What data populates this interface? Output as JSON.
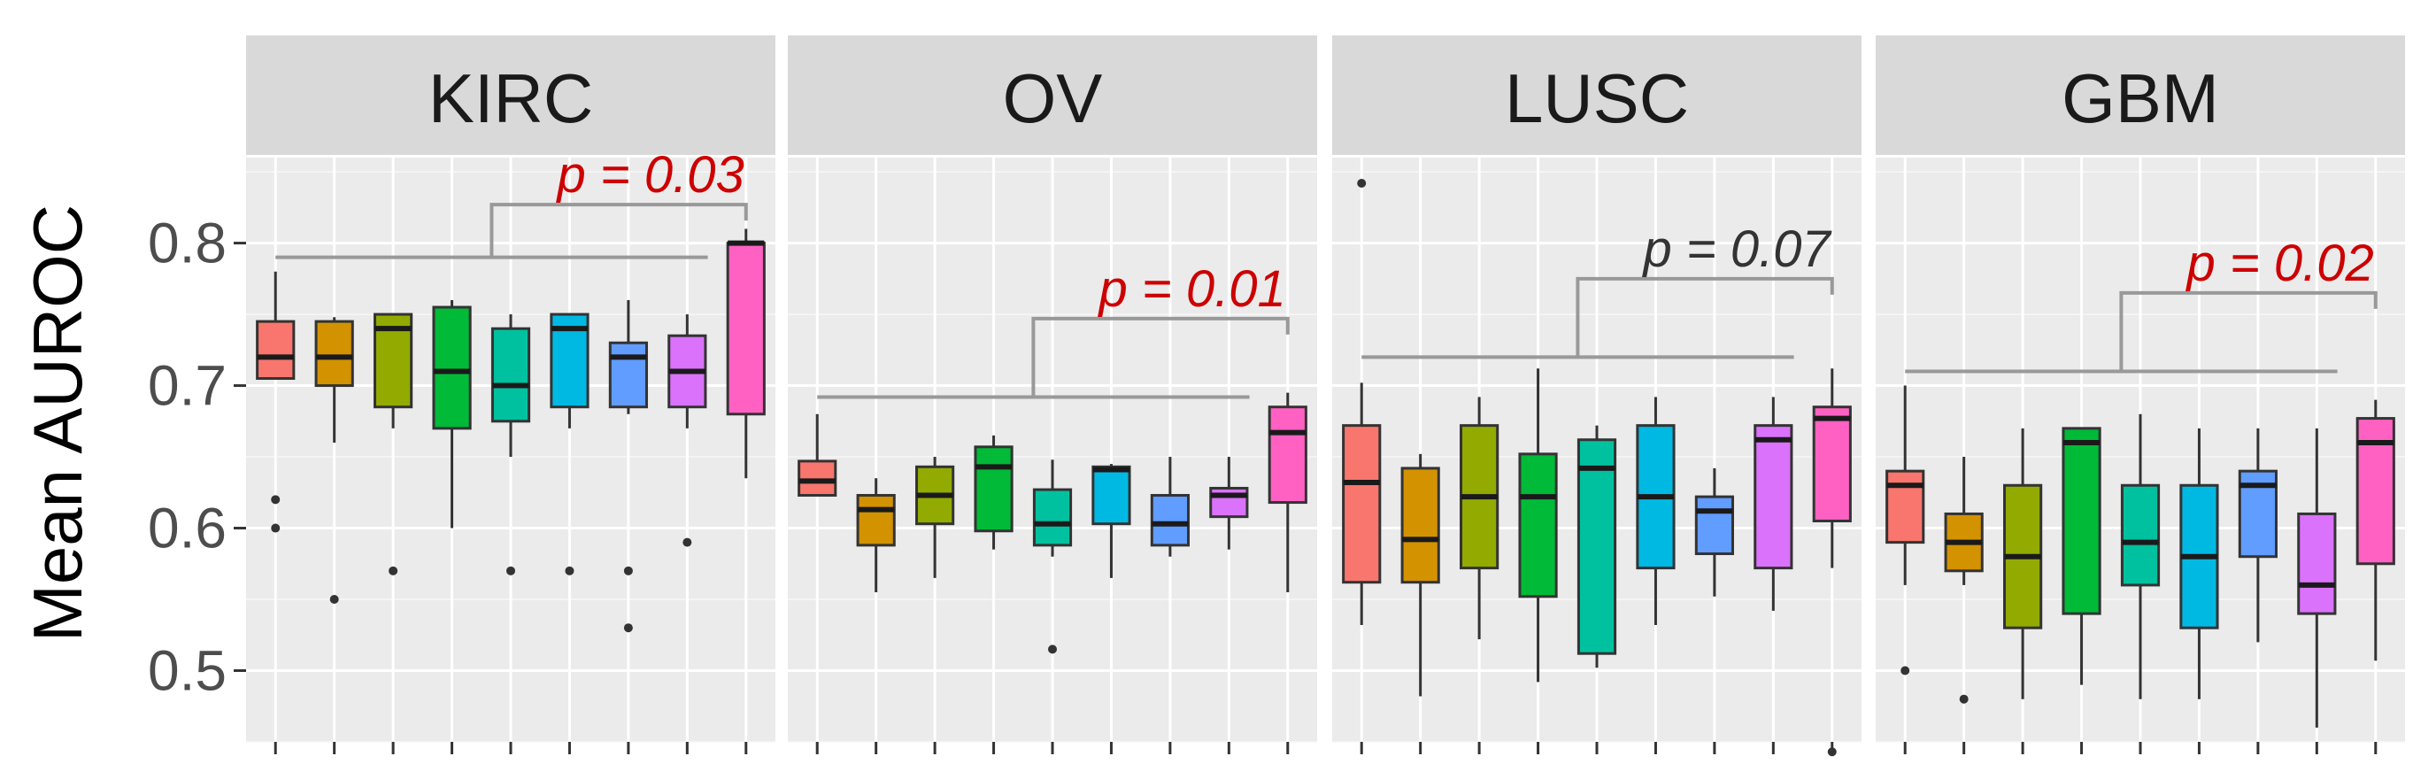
{
  "chart_data": {
    "type": "boxplot",
    "ylabel": "Mean AUROC",
    "ylim": [
      0.45,
      0.86
    ],
    "yticks": [
      0.5,
      0.6,
      0.7,
      0.8
    ],
    "ytick_labels": [
      "0.5",
      "0.6",
      "0.7",
      "0.8"
    ],
    "grid": true,
    "legend": "none",
    "series_colors": [
      "#F8766D",
      "#D39200",
      "#93AA00",
      "#00BA38",
      "#00C19F",
      "#00B9E3",
      "#619CFF",
      "#DB72FB",
      "#FF61C3"
    ],
    "panels": [
      {
        "label": "KIRC",
        "pvalue": {
          "text": "p = 0.03",
          "color": "#cc0000",
          "bracket_y": 0.79,
          "top_y": 0.827
        },
        "boxes": [
          {
            "q1": 0.705,
            "median": 0.72,
            "q3": 0.745,
            "whislo": 0.705,
            "whishi": 0.78,
            "outliers": [
              0.62,
              0.6
            ]
          },
          {
            "q1": 0.7,
            "median": 0.72,
            "q3": 0.745,
            "whislo": 0.66,
            "whishi": 0.748,
            "outliers": [
              0.55
            ]
          },
          {
            "q1": 0.685,
            "median": 0.74,
            "q3": 0.75,
            "whislo": 0.67,
            "whishi": 0.75,
            "outliers": [
              0.57
            ]
          },
          {
            "q1": 0.67,
            "median": 0.71,
            "q3": 0.755,
            "whislo": 0.6,
            "whishi": 0.76,
            "outliers": []
          },
          {
            "q1": 0.675,
            "median": 0.7,
            "q3": 0.74,
            "whislo": 0.65,
            "whishi": 0.75,
            "outliers": [
              0.57
            ]
          },
          {
            "q1": 0.685,
            "median": 0.74,
            "q3": 0.75,
            "whislo": 0.67,
            "whishi": 0.75,
            "outliers": [
              0.57
            ]
          },
          {
            "q1": 0.685,
            "median": 0.72,
            "q3": 0.73,
            "whislo": 0.68,
            "whishi": 0.76,
            "outliers": [
              0.57,
              0.53
            ]
          },
          {
            "q1": 0.685,
            "median": 0.71,
            "q3": 0.735,
            "whislo": 0.67,
            "whishi": 0.75,
            "outliers": [
              0.59
            ]
          },
          {
            "q1": 0.68,
            "median": 0.8,
            "q3": 0.8,
            "whislo": 0.635,
            "whishi": 0.81,
            "outliers": []
          }
        ]
      },
      {
        "label": "OV",
        "pvalue": {
          "text": "p = 0.01",
          "color": "#cc0000",
          "bracket_y": 0.692,
          "top_y": 0.747
        },
        "boxes": [
          {
            "q1": 0.623,
            "median": 0.633,
            "q3": 0.647,
            "whislo": 0.623,
            "whishi": 0.68,
            "outliers": []
          },
          {
            "q1": 0.588,
            "median": 0.613,
            "q3": 0.623,
            "whislo": 0.555,
            "whishi": 0.635,
            "outliers": []
          },
          {
            "q1": 0.603,
            "median": 0.623,
            "q3": 0.643,
            "whislo": 0.565,
            "whishi": 0.65,
            "outliers": []
          },
          {
            "q1": 0.598,
            "median": 0.643,
            "q3": 0.657,
            "whislo": 0.585,
            "whishi": 0.665,
            "outliers": []
          },
          {
            "q1": 0.588,
            "median": 0.603,
            "q3": 0.627,
            "whislo": 0.58,
            "whishi": 0.648,
            "outliers": [
              0.515
            ]
          },
          {
            "q1": 0.603,
            "median": 0.641,
            "q3": 0.643,
            "whislo": 0.565,
            "whishi": 0.645,
            "outliers": []
          },
          {
            "q1": 0.588,
            "median": 0.603,
            "q3": 0.623,
            "whislo": 0.58,
            "whishi": 0.65,
            "outliers": []
          },
          {
            "q1": 0.608,
            "median": 0.623,
            "q3": 0.628,
            "whislo": 0.585,
            "whishi": 0.65,
            "outliers": []
          },
          {
            "q1": 0.618,
            "median": 0.667,
            "q3": 0.685,
            "whislo": 0.555,
            "whishi": 0.695,
            "outliers": []
          }
        ]
      },
      {
        "label": "LUSC",
        "pvalue": {
          "text": "p = 0.07",
          "color": "#333333",
          "bracket_y": 0.72,
          "top_y": 0.775
        },
        "boxes": [
          {
            "q1": 0.562,
            "median": 0.632,
            "q3": 0.672,
            "whislo": 0.532,
            "whishi": 0.702,
            "outliers": [
              0.842
            ]
          },
          {
            "q1": 0.562,
            "median": 0.592,
            "q3": 0.642,
            "whislo": 0.482,
            "whishi": 0.652,
            "outliers": []
          },
          {
            "q1": 0.572,
            "median": 0.622,
            "q3": 0.672,
            "whislo": 0.522,
            "whishi": 0.692,
            "outliers": []
          },
          {
            "q1": 0.552,
            "median": 0.622,
            "q3": 0.652,
            "whislo": 0.492,
            "whishi": 0.712,
            "outliers": []
          },
          {
            "q1": 0.512,
            "median": 0.642,
            "q3": 0.662,
            "whislo": 0.502,
            "whishi": 0.672,
            "outliers": []
          },
          {
            "q1": 0.572,
            "median": 0.622,
            "q3": 0.672,
            "whislo": 0.532,
            "whishi": 0.692,
            "outliers": []
          },
          {
            "q1": 0.582,
            "median": 0.612,
            "q3": 0.622,
            "whislo": 0.552,
            "whishi": 0.642,
            "outliers": []
          },
          {
            "q1": 0.572,
            "median": 0.662,
            "q3": 0.672,
            "whislo": 0.542,
            "whishi": 0.692,
            "outliers": []
          },
          {
            "q1": 0.605,
            "median": 0.677,
            "q3": 0.685,
            "whislo": 0.572,
            "whishi": 0.712,
            "outliers": [
              0.443
            ]
          }
        ]
      },
      {
        "label": "GBM",
        "pvalue": {
          "text": "p = 0.02",
          "color": "#cc0000",
          "bracket_y": 0.71,
          "top_y": 0.765
        },
        "boxes": [
          {
            "q1": 0.59,
            "median": 0.63,
            "q3": 0.64,
            "whislo": 0.56,
            "whishi": 0.7,
            "outliers": [
              0.5
            ]
          },
          {
            "q1": 0.57,
            "median": 0.59,
            "q3": 0.61,
            "whislo": 0.56,
            "whishi": 0.65,
            "outliers": [
              0.48
            ]
          },
          {
            "q1": 0.53,
            "median": 0.58,
            "q3": 0.63,
            "whislo": 0.48,
            "whishi": 0.67,
            "outliers": []
          },
          {
            "q1": 0.54,
            "median": 0.66,
            "q3": 0.67,
            "whislo": 0.49,
            "whishi": 0.67,
            "outliers": []
          },
          {
            "q1": 0.56,
            "median": 0.59,
            "q3": 0.63,
            "whislo": 0.48,
            "whishi": 0.68,
            "outliers": []
          },
          {
            "q1": 0.53,
            "median": 0.58,
            "q3": 0.63,
            "whislo": 0.48,
            "whishi": 0.67,
            "outliers": []
          },
          {
            "q1": 0.58,
            "median": 0.63,
            "q3": 0.64,
            "whislo": 0.52,
            "whishi": 0.67,
            "outliers": []
          },
          {
            "q1": 0.54,
            "median": 0.56,
            "q3": 0.61,
            "whislo": 0.46,
            "whishi": 0.67,
            "outliers": []
          },
          {
            "q1": 0.575,
            "median": 0.66,
            "q3": 0.677,
            "whislo": 0.507,
            "whishi": 0.69,
            "outliers": []
          }
        ]
      }
    ]
  }
}
